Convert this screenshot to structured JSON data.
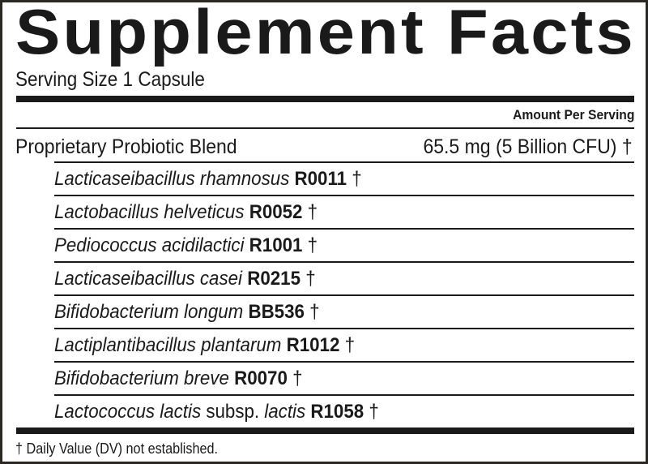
{
  "title": "Supplement Facts",
  "serving_size": "Serving Size 1 Capsule",
  "amount_header": "Amount Per Serving",
  "blend": {
    "name": "Proprietary Probiotic Blend",
    "amount": "65.5 mg (5 Billion CFU) †"
  },
  "strains": [
    {
      "species": "Lacticaseibacillus rhamnosus",
      "strain": "R0011",
      "mark": "†"
    },
    {
      "species": "Lactobacillus helveticus",
      "strain": "R0052",
      "mark": "†"
    },
    {
      "species": "Pediococcus acidilactici",
      "strain": "R1001",
      "mark": "†"
    },
    {
      "species": "Lacticaseibacillus casei",
      "strain": "R0215",
      "mark": "†"
    },
    {
      "species": "Bifidobacterium longum",
      "strain": "BB536",
      "mark": "†"
    },
    {
      "species": "Lactiplantibacillus plantarum",
      "strain": "R1012",
      "mark": "†"
    },
    {
      "species": "Bifidobacterium breve",
      "strain": "R0070",
      "mark": "†"
    },
    {
      "species": "Lactococcus lactis",
      "subsp": "subsp.",
      "subspecies": "lactis",
      "strain": "R1058",
      "mark": "†"
    }
  ],
  "footnote": "† Daily Value (DV) not established."
}
